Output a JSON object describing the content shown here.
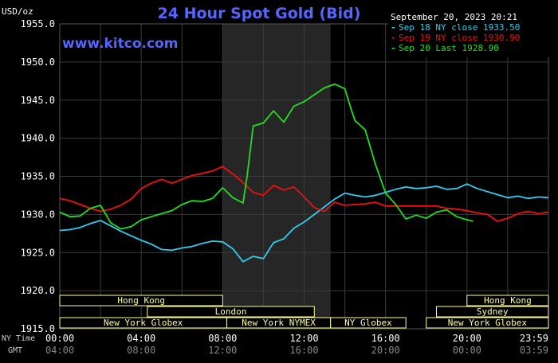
{
  "title": "24 Hour Spot Gold (Bid)",
  "unit_label": "USD/oz",
  "watermark": "www.kitco.com",
  "legend": {
    "date": "September 20, 2023 20:21",
    "items": [
      {
        "label": "Sep 18 NY close 1933.50",
        "color": "#33ccee"
      },
      {
        "label": "Sep 19 NY close 1930.90",
        "color": "#ee1111"
      },
      {
        "label": "Sep 20 Last 1928.90",
        "color": "#22dd22"
      }
    ]
  },
  "colors": {
    "background": "#000000",
    "grid": "#3a3a3a",
    "axis_text": "#ffffff",
    "time_text": "#cccccc",
    "title": "#5566ff",
    "watermark": "#5566ff",
    "highlight": "#262626",
    "session_box": "#ffff99",
    "session_text": "#000000"
  },
  "time_axis": {
    "row1_label": "NY Time",
    "row2_label": "GMT",
    "ny_ticks": [
      "00:00",
      "04:00",
      "08:00",
      "12:00",
      "16:00",
      "20:00",
      "23:59"
    ],
    "gmt_ticks": [
      "04:00",
      "08:00",
      "12:00",
      "16:00",
      "20:00",
      "00:00",
      "03:59"
    ]
  },
  "sessions": [
    {
      "name": "Hong Kong",
      "row": 0,
      "start": 0,
      "end": 8
    },
    {
      "name": "London",
      "row": 1,
      "start": 4.3,
      "end": 12.5
    },
    {
      "name": "New York Globex",
      "row": 2,
      "start": 0,
      "end": 8.2
    },
    {
      "name": "New York NYMEX",
      "row": 2,
      "start": 8.2,
      "end": 13.3
    },
    {
      "name": "NY Globex",
      "row": 2,
      "start": 13.3,
      "end": 17
    },
    {
      "name": "Sydney",
      "row": 1,
      "start": 18.5,
      "end": 24
    },
    {
      "name": "Hong Kong",
      "row": 0,
      "start": 20,
      "end": 24
    },
    {
      "name": "New York Globex",
      "row": 2,
      "start": 18,
      "end": 24
    }
  ],
  "chart_data": {
    "type": "line",
    "title": "24 Hour Spot Gold (Bid)",
    "ylabel": "USD/oz",
    "xlabel": "NY Time",
    "ylim": [
      1915,
      1955
    ],
    "yticks": [
      "1955.0",
      "1950.0",
      "1945.0",
      "1940.0",
      "1935.0",
      "1930.0",
      "1925.0",
      "1920.0",
      "1915.0"
    ],
    "xlim": [
      0,
      24
    ],
    "highlight_range": [
      8,
      13.3
    ],
    "grid": true,
    "legend_position": "top-right",
    "series": [
      {
        "name": "Sep 18 NY close 1933.50",
        "color": "#33ccee",
        "x": [
          0,
          0.5,
          1,
          1.5,
          2,
          2.5,
          3,
          3.5,
          4,
          4.5,
          5,
          5.5,
          6,
          6.5,
          7,
          7.5,
          8,
          8.5,
          9,
          9.5,
          10,
          10.5,
          11,
          11.5,
          12,
          12.5,
          13,
          13.5,
          14,
          14.5,
          15,
          15.5,
          16,
          16.5,
          17,
          17.5,
          18,
          18.5,
          19,
          19.5,
          20,
          20.5,
          21,
          21.5,
          22,
          22.5,
          23,
          23.5,
          24
        ],
        "y": [
          1927.9,
          1928,
          1928.3,
          1928.8,
          1929.2,
          1928.5,
          1927.8,
          1927.2,
          1926.6,
          1926.1,
          1925.4,
          1925.3,
          1925.6,
          1925.8,
          1926.2,
          1926.5,
          1926.4,
          1925.5,
          1923.8,
          1924.5,
          1924.2,
          1926.3,
          1926.8,
          1928.2,
          1929,
          1930,
          1931,
          1932,
          1932.8,
          1932.5,
          1932.3,
          1932.5,
          1932.9,
          1933.3,
          1933.6,
          1933.4,
          1933.5,
          1933.7,
          1933.3,
          1933.4,
          1934,
          1933.4,
          1933,
          1932.6,
          1932.2,
          1932.4,
          1932.1,
          1932.3,
          1932.2
        ]
      },
      {
        "name": "Sep 19 NY close 1930.90",
        "color": "#ee1111",
        "x": [
          0,
          0.5,
          1,
          1.5,
          2,
          2.5,
          3,
          3.5,
          4,
          4.5,
          5,
          5.5,
          6,
          6.5,
          7,
          7.5,
          8,
          8.5,
          9,
          9.5,
          10,
          10.5,
          11,
          11.5,
          12,
          12.5,
          13,
          13.5,
          14,
          14.5,
          15,
          15.5,
          16,
          16.5,
          17,
          17.5,
          18,
          18.5,
          19,
          19.5,
          20,
          20.5,
          21,
          21.5,
          22,
          22.5,
          23,
          23.5,
          24
        ],
        "y": [
          1932.1,
          1931.8,
          1931.3,
          1930.8,
          1930.4,
          1930.7,
          1931.2,
          1932,
          1933.4,
          1934.1,
          1934.6,
          1934.1,
          1934.6,
          1935.1,
          1935.4,
          1935.7,
          1936.3,
          1935.3,
          1934.2,
          1932.9,
          1932.5,
          1933.8,
          1933.2,
          1933.6,
          1932.3,
          1930.9,
          1930.4,
          1931.6,
          1931.2,
          1931.3,
          1931.4,
          1931.6,
          1931.1,
          1931.1,
          1931.1,
          1931.1,
          1931.1,
          1931.1,
          1930.8,
          1930.7,
          1930.5,
          1930.2,
          1930,
          1929.1,
          1929.5,
          1930.1,
          1930.4,
          1930.1,
          1930.3
        ]
      },
      {
        "name": "Sep 20 Last 1928.90",
        "color": "#22dd22",
        "x": [
          0,
          0.5,
          1,
          1.5,
          2,
          2.5,
          3,
          3.5,
          4,
          4.5,
          5,
          5.5,
          6,
          6.5,
          7,
          7.5,
          8,
          8.5,
          9,
          9.2,
          9.5,
          10,
          10.5,
          11,
          11.5,
          12,
          12.5,
          13,
          13.5,
          14,
          14.3,
          14.5,
          15,
          15.5,
          16,
          16.5,
          17,
          17.5,
          18,
          18.5,
          19,
          19.5,
          20,
          20.3
        ],
        "y": [
          1930.3,
          1929.7,
          1929.8,
          1930.8,
          1931.2,
          1928.9,
          1928.1,
          1928.4,
          1929.3,
          1929.7,
          1930.1,
          1930.5,
          1931.3,
          1931.8,
          1931.7,
          1932.1,
          1933.5,
          1932.2,
          1931.5,
          1935,
          1941.6,
          1942,
          1943.6,
          1942.1,
          1944.2,
          1944.8,
          1945.7,
          1946.6,
          1947.1,
          1946.5,
          1943.9,
          1942.3,
          1941.1,
          1936.6,
          1932.8,
          1931.3,
          1929.4,
          1929.9,
          1929.5,
          1930.3,
          1930.6,
          1929.7,
          1929.3,
          1929.1
        ]
      }
    ]
  }
}
